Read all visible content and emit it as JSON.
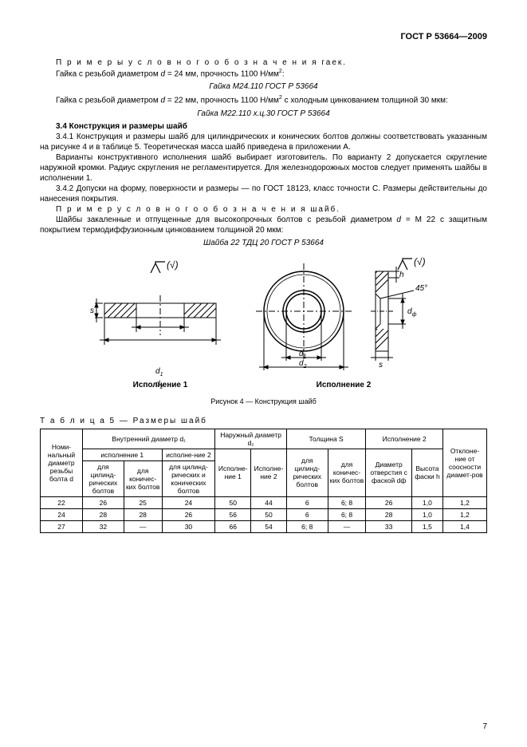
{
  "header": "ГОСТ Р 53664—2009",
  "text": {
    "l1": "П р и м е р ы   у с л о в н о г о   о б о з н а ч е н и я  гаек.",
    "l2a": "Гайка с резьбой диаметром ",
    "l2d": "d",
    "l2b": " = 24 мм, прочность 1100 Н/мм",
    "l2sup": "2",
    "l2c": ":",
    "l3": "Гайка М24.110 ГОСТ Р 53664",
    "l4a": "Гайка с резьбой диаметром ",
    "l4d": "d",
    "l4b": " = 22 мм, прочность 1100 Н/мм",
    "l4sup": "2",
    "l4c": " с холодным цинкованием толщиной 30 мкм:",
    "l5": "Гайка М22.110 х.ц.30 ГОСТ Р 53664",
    "h34": "3.4  Конструкция и размеры шайб",
    "p341": "3.4.1  Конструкция и размеры шайб для цилиндрических и конических болтов должны соответствовать указанным на рисунке 4 и в таблице 5. Теоретическая масса шайб приведена в приложении А.",
    "p341b": "Варианты конструктивного исполнения шайб выбирает изготовитель. По варианту 2 допускается скругление наружной кромки. Радиус скругления не регламентируется. Для железнодорожных мостов следует применять шайбы в исполнении 1.",
    "p342": "3.4.2  Допуски на форму, поверхности и размеры — по ГОСТ 18123, класс точности С. Размеры действительны до нанесения покрытия.",
    "ex1": "П р и м е р  у с л о в н о г о   о б о з н а ч е н и я  шайб.",
    "ex2a": "Шайбы закаленные и отпущенные для высокопрочных болтов с резьбой диаметром ",
    "ex2d": "d",
    "ex2b": " = М 22 с защитным покрытием термодиффузионным цинкованием толщиной 20 мкм:",
    "ex3": "Шайба 22 ТДЦ 20 ГОСТ Р 53664",
    "cap_isp1": "Исполнение 1",
    "cap_isp2": "Исполнение 2",
    "figcap": "Рисунок 4 — Конструкция шайб",
    "tblcap": "Т а б л и ц а   5 — Размеры шайб"
  },
  "table": {
    "head": {
      "c1": "Номи-нальный диаметр резьбы болта d",
      "c2": "Внутренний диаметр d₁",
      "c2a": "исполнение 1",
      "c2a1": "для цилинд-рических болтов",
      "c2a2": "для коничес-ких болтов",
      "c2b": "исполне-ние 2",
      "c2b1": "для цилинд-рических и конических болтов",
      "c3": "Наружный диаметр d₂",
      "c3a": "Исполне-ние 1",
      "c3b": "Исполне-ние 2",
      "c4": "Толщина S",
      "c4a": "для цилинд-рических болтов",
      "c4b": "для коничес-ких болтов",
      "c5": "Исполнение 2",
      "c5a": "Диаметр отверстия с фаской dф",
      "c5b": "Высота фаски h",
      "c6": "Отклоне-ние от соосности диамет-ров"
    },
    "rows": [
      [
        "22",
        "26",
        "25",
        "24",
        "50",
        "44",
        "6",
        "6; 8",
        "26",
        "1,0",
        "1,2"
      ],
      [
        "24",
        "28",
        "28",
        "26",
        "56",
        "50",
        "6",
        "6; 8",
        "28",
        "1,0",
        "1,2"
      ],
      [
        "27",
        "32",
        "—",
        "30",
        "66",
        "54",
        "6; 8",
        "—",
        "33",
        "1,5",
        "1,4"
      ]
    ]
  },
  "pagenum": "7",
  "colors": {
    "line": "#000",
    "bg": "#fff"
  }
}
